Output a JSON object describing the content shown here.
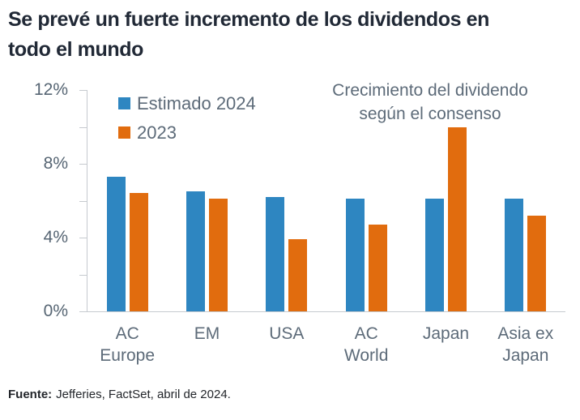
{
  "title": "Se prevé un fuerte incremento de los dividendos en\ntodo el mundo",
  "chart_data": {
    "type": "bar",
    "title": "Crecimiento del dividendo\nsegún el consenso",
    "categories": [
      "AC Europe",
      "EM",
      "USA",
      "AC World",
      "Japan",
      "Asia ex Japan"
    ],
    "category_label_lines": [
      "AC\nEurope",
      "EM",
      "USA",
      "AC\nWorld",
      "Japan",
      "Asia ex\nJapan"
    ],
    "series": [
      {
        "name": "Estimado 2024",
        "color": "#2E86C1",
        "values": [
          7.3,
          6.5,
          6.2,
          6.1,
          6.1,
          6.1
        ]
      },
      {
        "name": "2023",
        "color": "#E16C0E",
        "values": [
          6.4,
          6.1,
          3.9,
          4.7,
          10.0,
          5.2
        ]
      }
    ],
    "y_axis": {
      "unit": "%",
      "min": 0,
      "max": 12,
      "ticks": [
        0,
        2,
        4,
        6,
        8,
        10,
        12
      ],
      "labeled_ticks": [
        0,
        4,
        8,
        12
      ]
    },
    "legend_position": "top-left",
    "grid": false,
    "ylim": [
      0,
      12
    ]
  },
  "footer": {
    "source_label": "Fuente:",
    "source_text": "Jefferies, FactSet, abril de 2024."
  }
}
